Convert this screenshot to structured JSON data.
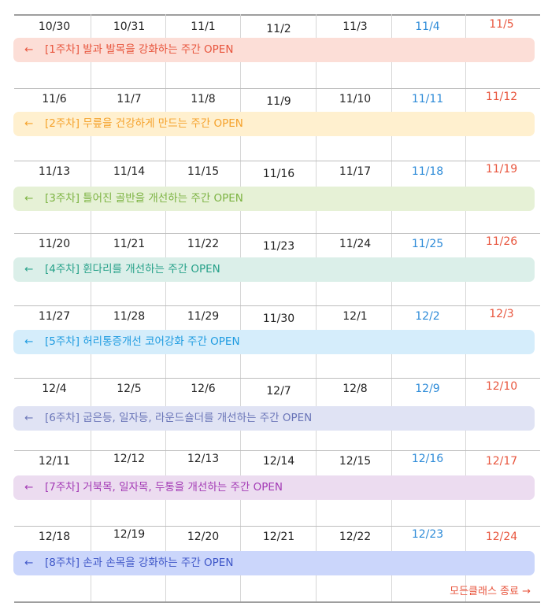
{
  "weeks": [
    {
      "dates": [
        "10/30",
        "10/31",
        "11/1",
        "11/2",
        "11/3",
        "11/4",
        "11/5"
      ],
      "banner": {
        "arrow": "←",
        "label": "[1주차] 발과 발목을 강화하는 주간 OPEN",
        "bg": "#fcded7",
        "color": "#e8553d"
      }
    },
    {
      "dates": [
        "11/6",
        "11/7",
        "11/8",
        "11/9",
        "11/10",
        "11/11",
        "11/12"
      ],
      "banner": {
        "arrow": "←",
        "label": "[2주차] 무릎을 건강하게 만드는 주간 OPEN",
        "bg": "#fff0cf",
        "color": "#f5a12a"
      }
    },
    {
      "dates": [
        "11/13",
        "11/14",
        "11/15",
        "11/16",
        "11/17",
        "11/18",
        "11/19"
      ],
      "banner": {
        "arrow": "←",
        "label": "[3주차] 틀어진 골반을 개선하는 주간 OPEN",
        "bg": "#e6f1d6",
        "color": "#7cb342"
      }
    },
    {
      "dates": [
        "11/20",
        "11/21",
        "11/22",
        "11/23",
        "11/24",
        "11/25",
        "11/26"
      ],
      "banner": {
        "arrow": "←",
        "label": "[4주차] 휜다리를 개선하는 주간 OPEN",
        "bg": "#dbefe9",
        "color": "#26a189"
      }
    },
    {
      "dates": [
        "11/27",
        "11/28",
        "11/29",
        "11/30",
        "12/1",
        "12/2",
        "12/3"
      ],
      "banner": {
        "arrow": "←",
        "label": "[5주차] 허리통증개선 코어강화 주간 OPEN",
        "bg": "#d5edfb",
        "color": "#1e9be0"
      }
    },
    {
      "dates": [
        "12/4",
        "12/5",
        "12/6",
        "12/7",
        "12/8",
        "12/9",
        "12/10"
      ],
      "banner": {
        "arrow": "←",
        "label": "[6주차] 굽은등, 일자등, 라운드숄더를 개선하는 주간 OPEN",
        "bg": "#e0e3f4",
        "color": "#6a75b8"
      }
    },
    {
      "dates": [
        "12/11",
        "12/12",
        "12/13",
        "12/14",
        "12/15",
        "12/16",
        "12/17"
      ],
      "banner": {
        "arrow": "←",
        "label": "[7주차] 거북목, 일자목, 두통을 개선하는 주간 OPEN",
        "bg": "#ecdcf0",
        "color": "#a33ab5"
      }
    },
    {
      "dates": [
        "12/18",
        "12/19",
        "12/20",
        "12/21",
        "12/22",
        "12/23",
        "12/24"
      ],
      "banner": {
        "arrow": "←",
        "label": "[8주차] 손과 손목을 강화하는 주간 OPEN",
        "bg": "#cbd6fb",
        "color": "#3d55c7"
      }
    }
  ],
  "footer": {
    "end_label": "모든클래스 종료 →"
  },
  "colors": {
    "saturday": "#2e8bd8",
    "sunday": "#e8553d",
    "grid": "#bdbdbd"
  }
}
